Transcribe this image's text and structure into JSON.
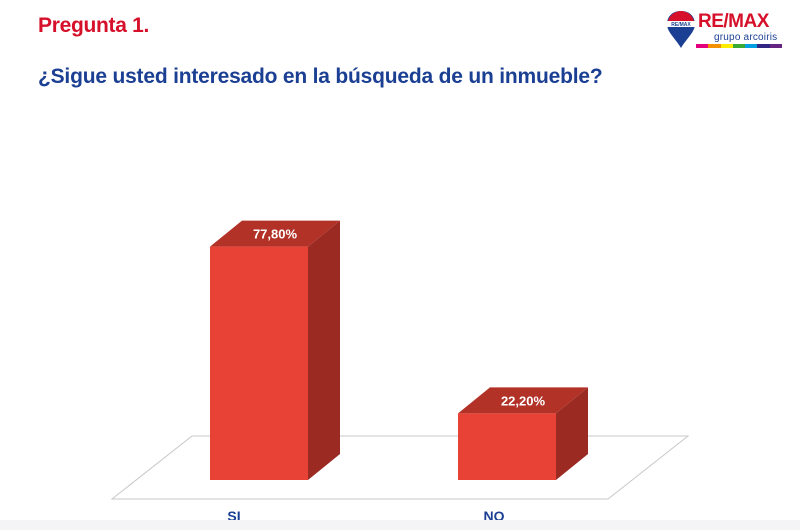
{
  "header": {
    "slide_label": "Pregunta 1.",
    "question": "¿Sigue usted interesado en la búsqueda de un inmueble?"
  },
  "logo": {
    "wordmark": "RE/MAX",
    "balloon_text": "RE/MAX",
    "subtitle": "grupo arcoiris",
    "stripe_colors": [
      "#e4007c",
      "#f39200",
      "#ffed00",
      "#3aaa35",
      "#009fe3",
      "#312783",
      "#662483"
    ]
  },
  "colors": {
    "bar_front": "#e84236",
    "bar_side": "#9b2a23",
    "bar_top": "#b23228",
    "label_color": "#1b3f93"
  },
  "chart_data": {
    "type": "bar",
    "categories": [
      "SI",
      "NO"
    ],
    "values": [
      77.8,
      22.2
    ],
    "value_labels": [
      "77,80%",
      "22,20%"
    ],
    "title": "",
    "xlabel": "",
    "ylabel": "",
    "ylim": [
      0,
      100
    ],
    "grid": false,
    "legend": "none",
    "style": "3d"
  }
}
